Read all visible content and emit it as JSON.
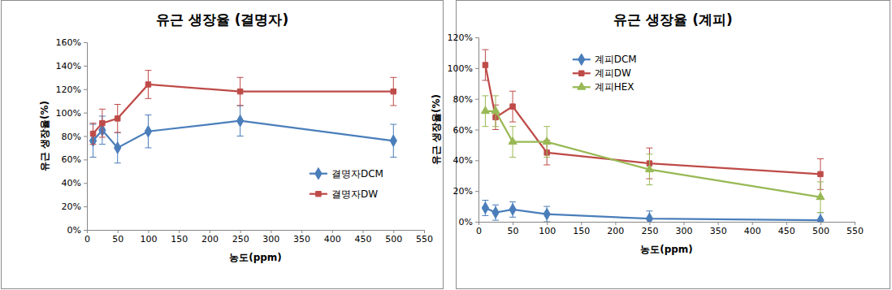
{
  "chart_data": [
    {
      "type": "line",
      "title": "유근 생장율 (결명자)",
      "x_label": "농도(ppm)",
      "y_label": "유근 생장율(%)",
      "x": [
        10,
        25,
        50,
        100,
        250,
        500
      ],
      "xlim": [
        0,
        550
      ],
      "xticks": [
        0,
        50,
        100,
        150,
        200,
        250,
        300,
        350,
        400,
        450,
        500,
        550
      ],
      "ylim": [
        0,
        160
      ],
      "yticks": [
        {
          "value": 0,
          "label": "0%"
        },
        {
          "value": 20,
          "label": "20%"
        },
        {
          "value": 40,
          "label": "40%"
        },
        {
          "value": 60,
          "label": "60%"
        },
        {
          "value": 80,
          "label": "80%"
        },
        {
          "value": 100,
          "label": "100%"
        },
        {
          "value": 120,
          "label": "120%"
        },
        {
          "value": 140,
          "label": "140%"
        },
        {
          "value": 160,
          "label": "160%"
        }
      ],
      "grid": false,
      "legend": "right",
      "series": [
        {
          "name": "결명자DCM",
          "color": "#4a7ebb",
          "marker": "diamond",
          "values": [
            76,
            85,
            70,
            84,
            93,
            76
          ],
          "errors": [
            14,
            12,
            13,
            14,
            13,
            14
          ]
        },
        {
          "name": "결명자DW",
          "color": "#be4b48",
          "marker": "square",
          "values": [
            82,
            91,
            95,
            124,
            118,
            118
          ],
          "errors": [
            9,
            12,
            12,
            12,
            12,
            12
          ]
        }
      ]
    },
    {
      "type": "line",
      "title": "유근 생장율 (계피)",
      "x_label": "농도(ppm)",
      "y_label": "유근 생장율(%)",
      "x": [
        10,
        25,
        50,
        100,
        250,
        500
      ],
      "xlim": [
        0,
        550
      ],
      "xticks": [
        0,
        50,
        100,
        150,
        200,
        250,
        300,
        350,
        400,
        450,
        500,
        550
      ],
      "ylim": [
        0,
        120
      ],
      "yticks": [
        {
          "value": 0,
          "label": "0%"
        },
        {
          "value": 20,
          "label": "20%"
        },
        {
          "value": 40,
          "label": "40%"
        },
        {
          "value": 60,
          "label": "60%"
        },
        {
          "value": 80,
          "label": "80%"
        },
        {
          "value": 100,
          "label": "100%"
        },
        {
          "value": 120,
          "label": "120%"
        }
      ],
      "grid": false,
      "legend": "upper center",
      "series": [
        {
          "name": "계피DCM",
          "color": "#4a7ebb",
          "marker": "diamond",
          "values": [
            9,
            6,
            8,
            5,
            2,
            1
          ],
          "errors": [
            5,
            5,
            5,
            5,
            5,
            5
          ]
        },
        {
          "name": "계피DW",
          "color": "#be4b48",
          "marker": "square",
          "values": [
            102,
            68,
            75,
            45,
            38,
            31
          ],
          "errors": [
            10,
            8,
            10,
            8,
            10,
            10
          ]
        },
        {
          "name": "계피HEX",
          "color": "#98b954",
          "marker": "triangle",
          "values": [
            72,
            72,
            52,
            52,
            34,
            16
          ],
          "errors": [
            10,
            10,
            10,
            10,
            10,
            10
          ]
        }
      ]
    }
  ]
}
